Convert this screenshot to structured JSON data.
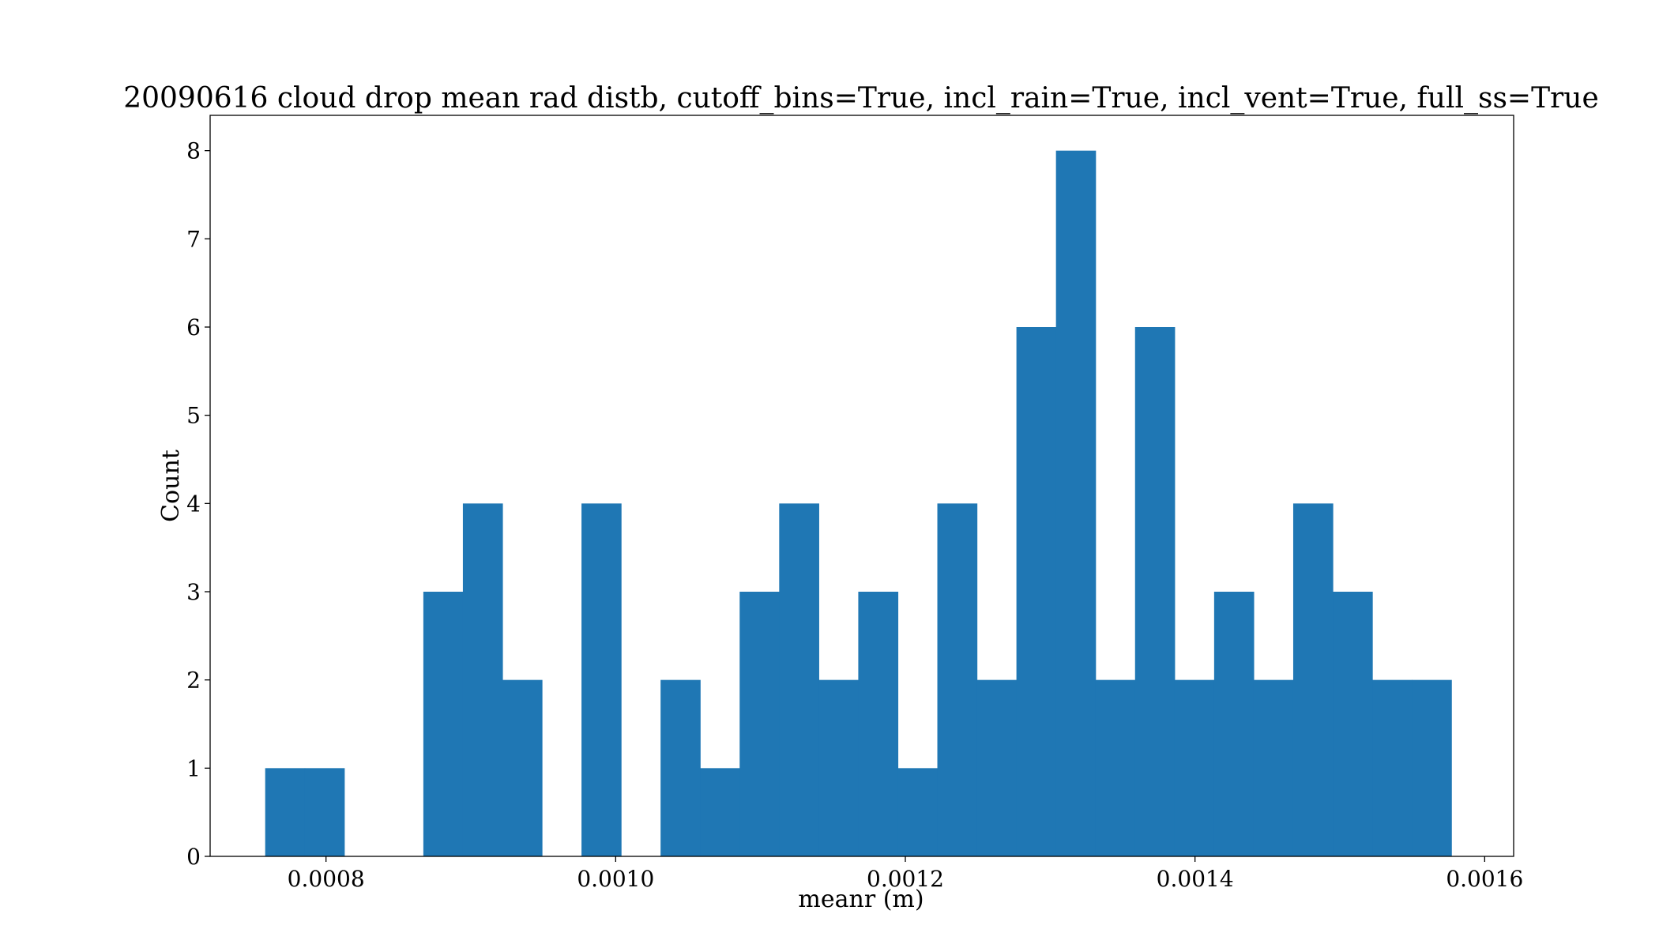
{
  "chart_data": {
    "type": "bar",
    "title": "20090616 cloud drop mean rad distb, cutoff_bins=True, incl_rain=True, incl_vent=True, full_ss=True",
    "xlabel": "meanr (m)",
    "ylabel": "Count",
    "xlim": [
      0.00072,
      0.00162
    ],
    "ylim": [
      0,
      8.4
    ],
    "x_ticks": [
      0.0008,
      0.001,
      0.0012,
      0.0014,
      0.0016
    ],
    "x_tick_labels": [
      "0.0008",
      "0.0010",
      "0.0012",
      "0.0014",
      "0.0016"
    ],
    "y_ticks": [
      0,
      1,
      2,
      3,
      4,
      5,
      6,
      7,
      8
    ],
    "y_tick_labels": [
      "0",
      "1",
      "2",
      "3",
      "4",
      "5",
      "6",
      "7",
      "8"
    ],
    "bin_start": 0.000758,
    "bin_width": 2.73e-05,
    "counts": [
      1,
      1,
      0,
      0,
      3,
      4,
      2,
      0,
      4,
      0,
      2,
      1,
      3,
      4,
      2,
      3,
      1,
      4,
      2,
      6,
      8,
      2,
      6,
      2,
      3,
      2,
      4,
      3,
      2,
      2
    ],
    "color": "#1f77b4",
    "grid": false,
    "legend": "none"
  }
}
